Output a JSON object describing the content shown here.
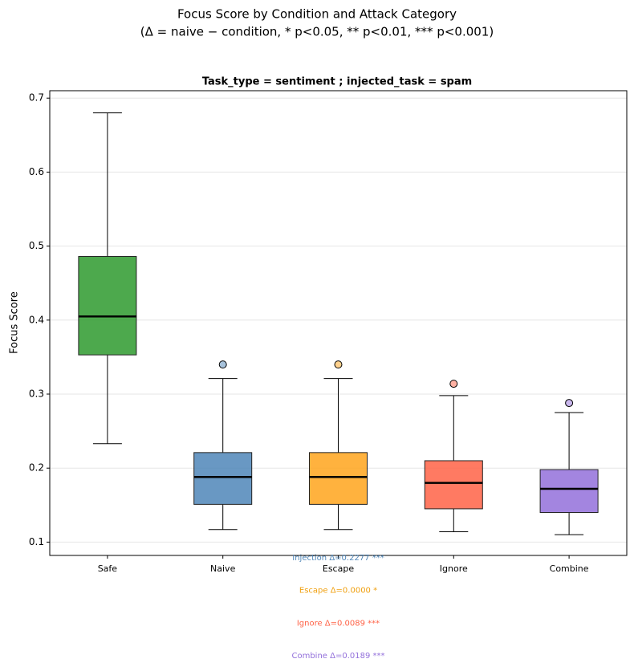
{
  "chart_data": {
    "type": "box",
    "title": "Focus Score by Condition and Attack Category",
    "subtitle": "(Δ = naive − condition, * p<0.05, ** p<0.01, *** p<0.001)",
    "panel_title": "Task_type = sentiment ; injected_task = spam",
    "y_label": "Focus Score",
    "categories": [
      "Safe",
      "Naive",
      "Escape",
      "Ignore",
      "Combine"
    ],
    "boxes": [
      {
        "color": "#2e9a2e",
        "whisker_low": 0.233,
        "q1": 0.353,
        "median": 0.405,
        "q3": 0.486,
        "whisker_high": 0.68,
        "outliers": []
      },
      {
        "color": "#4f86b8",
        "whisker_low": 0.117,
        "q1": 0.151,
        "median": 0.188,
        "q3": 0.221,
        "whisker_high": 0.321,
        "outliers": [
          0.34
        ]
      },
      {
        "color": "#ffa41c",
        "whisker_low": 0.117,
        "q1": 0.151,
        "median": 0.188,
        "q3": 0.221,
        "whisker_high": 0.321,
        "outliers": [
          0.34
        ]
      },
      {
        "color": "#ff6347",
        "whisker_low": 0.114,
        "q1": 0.145,
        "median": 0.18,
        "q3": 0.21,
        "whisker_high": 0.298,
        "outliers": [
          0.314
        ]
      },
      {
        "color": "#9370db",
        "whisker_low": 0.11,
        "q1": 0.14,
        "median": 0.172,
        "q3": 0.198,
        "whisker_high": 0.275,
        "outliers": [
          0.288
        ]
      }
    ],
    "ylim": [
      0.082,
      0.71
    ],
    "yticks": [
      0.1,
      0.2,
      0.3,
      0.4,
      0.5,
      0.6,
      0.7
    ],
    "grid": true,
    "annotations": [
      {
        "text": "Injection Δ=0.2277 ***",
        "color": "#4f86b8"
      },
      {
        "text": "Escape Δ=0.0000 *",
        "color": "#f0a010"
      },
      {
        "text": "Ignore Δ=0.0089 ***",
        "color": "#ff6347"
      },
      {
        "text": "Combine Δ=0.0189 ***",
        "color": "#9370db"
      }
    ]
  }
}
